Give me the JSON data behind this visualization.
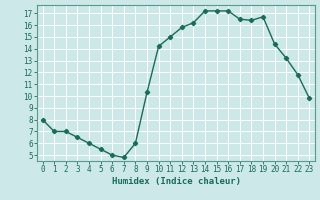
{
  "x": [
    0,
    1,
    2,
    3,
    4,
    5,
    6,
    7,
    8,
    9,
    10,
    11,
    12,
    13,
    14,
    15,
    16,
    17,
    18,
    19,
    20,
    21,
    22,
    23
  ],
  "y": [
    8.0,
    7.0,
    7.0,
    6.5,
    6.0,
    5.5,
    5.0,
    4.8,
    6.0,
    10.3,
    14.2,
    15.0,
    15.8,
    16.2,
    17.2,
    17.2,
    17.2,
    16.5,
    16.4,
    16.7,
    14.4,
    13.2,
    11.8,
    9.8
  ],
  "xlabel": "Humidex (Indice chaleur)",
  "line_color": "#1a6b5a",
  "marker": "D",
  "marker_size": 2.2,
  "linewidth": 1.0,
  "bg_color": "#cce8e8",
  "grid_color": "#ffffff",
  "xlim": [
    -0.5,
    23.5
  ],
  "ylim": [
    4.5,
    17.7
  ],
  "yticks": [
    5,
    6,
    7,
    8,
    9,
    10,
    11,
    12,
    13,
    14,
    15,
    16,
    17
  ],
  "xticks": [
    0,
    1,
    2,
    3,
    4,
    5,
    6,
    7,
    8,
    9,
    10,
    11,
    12,
    13,
    14,
    15,
    16,
    17,
    18,
    19,
    20,
    21,
    22,
    23
  ],
  "tick_fontsize": 5.5,
  "label_fontsize": 6.5,
  "tick_color": "#1a6b5a",
  "spine_color": "#5a9a8a"
}
